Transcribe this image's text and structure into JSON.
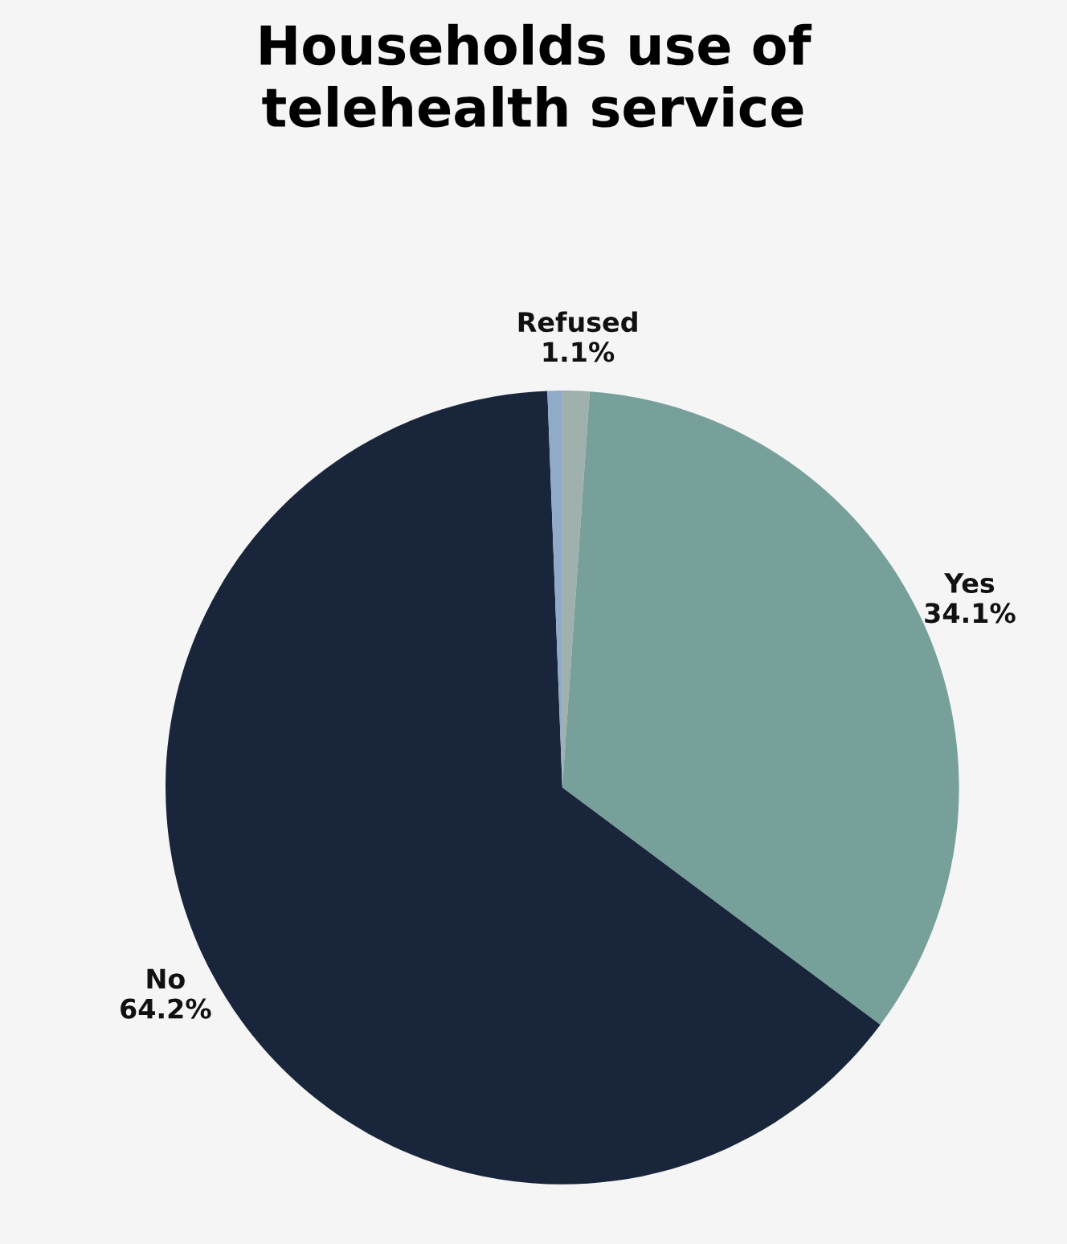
{
  "chart_data": {
    "type": "pie",
    "title": "Households use of\ntelehealth service",
    "categories": [
      "Refused",
      "Yes",
      "No",
      null
    ],
    "values": [
      1.1,
      34.1,
      64.2,
      0.6
    ],
    "value_labels": [
      "1.1%",
      "34.1%",
      "64.2%",
      null
    ],
    "colors": [
      "#a0b0ac",
      "#78a09a",
      "#19253a",
      "#8fabc8"
    ],
    "legend": false
  }
}
